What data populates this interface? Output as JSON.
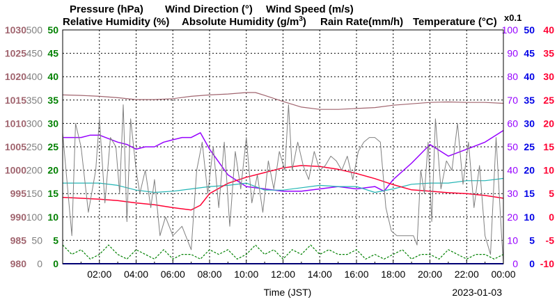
{
  "chart_data": {
    "type": "line",
    "legend": {
      "pressure": "Pressure (hPa)",
      "wind_direction": "Wind Direction (°)",
      "wind_speed": "Wind Speed (m/s)",
      "relative_humidity": "Relative Humidity (%)",
      "absolute_humidity": "Absolute Humidity (g/m",
      "absolute_humidity_sup": "3",
      "absolute_humidity_close": ")",
      "rain_rate": "Rain Rate(mm/h)",
      "temperature": "Temperature (°C)",
      "scale_note": "x0.1"
    },
    "xlabel": "Time (JST)",
    "date": "2023-01-03",
    "x_ticks": [
      "02:00",
      "04:00",
      "06:00",
      "08:00",
      "10:00",
      "12:00",
      "14:00",
      "16:00",
      "18:00",
      "20:00",
      "22:00",
      "00:00"
    ],
    "x_range_hours": [
      0,
      24
    ],
    "axes": {
      "pressure": {
        "range": [
          980,
          1030
        ],
        "ticks": [
          "980",
          "985",
          "990",
          "995",
          "1000",
          "1005",
          "1010",
          "1015",
          "1020",
          "1025",
          "1030"
        ]
      },
      "wind_direction": {
        "range": [
          0,
          500
        ],
        "ticks": [
          "0",
          "50",
          "100",
          "150",
          "200",
          "250",
          "300",
          "350",
          "400",
          "450",
          "500"
        ]
      },
      "wind_speed": {
        "range": [
          0,
          50
        ],
        "ticks": [
          "0",
          "5",
          "10",
          "15",
          "20",
          "25",
          "30",
          "35",
          "40",
          "45",
          "50"
        ]
      },
      "humidity": {
        "range": [
          0,
          100
        ],
        "ticks": [
          "0",
          "10",
          "20",
          "30",
          "40",
          "50",
          "60",
          "70",
          "80",
          "90",
          "100"
        ]
      },
      "rain_rate": {
        "range": [
          0,
          50
        ],
        "ticks": [
          "0",
          "5",
          "10",
          "15",
          "20",
          "25",
          "30",
          "35",
          "40",
          "45",
          "50"
        ]
      },
      "temperature": {
        "range": [
          -10,
          40
        ],
        "ticks": [
          "-10",
          "-5",
          "0",
          "5",
          "10",
          "15",
          "20",
          "25",
          "30",
          "35",
          "40"
        ]
      }
    },
    "colors": {
      "pressure": "#a0646e",
      "wind_direction": "#808080",
      "wind_speed": "#008000",
      "relative_humidity": "#9600ff",
      "absolute_humidity": "#20b4b4",
      "rain_rate": "#0000e6",
      "temperature": "#ff0032"
    },
    "grid": true,
    "series": [
      {
        "name": "Pressure (hPa)",
        "key": "pressure",
        "axis": "pressure",
        "x": [
          0,
          1,
          2,
          3,
          4,
          5,
          6,
          7,
          8,
          9,
          10,
          10.5,
          11,
          12,
          13,
          14,
          15,
          16,
          17,
          18,
          19,
          20,
          21,
          22,
          23,
          24
        ],
        "values": [
          1016.1,
          1016.0,
          1015.8,
          1015.5,
          1015.1,
          1015.1,
          1015.3,
          1015.8,
          1016.1,
          1016.3,
          1016.6,
          1016.6,
          1016.0,
          1014.7,
          1013.5,
          1013.0,
          1013.0,
          1013.2,
          1013.4,
          1013.9,
          1014.2,
          1014.5,
          1014.6,
          1014.5,
          1014.5,
          1014.3
        ]
      },
      {
        "name": "Relative Humidity (%)",
        "key": "relative_humidity",
        "axis": "humidity",
        "x": [
          0,
          1,
          1.5,
          2,
          3,
          3.5,
          4,
          4.5,
          5,
          5.5,
          6,
          6.5,
          7,
          7.5,
          8,
          9,
          10,
          11,
          12,
          13,
          14,
          15,
          16,
          17,
          17.5,
          18,
          19,
          19.5,
          20,
          21,
          22,
          23,
          24
        ],
        "values": [
          54,
          54,
          55,
          55,
          52,
          51,
          49,
          50,
          50,
          52,
          53,
          54,
          54,
          56,
          49,
          38,
          33,
          32,
          31,
          31,
          32,
          33,
          32,
          33,
          31,
          36,
          43,
          47,
          51,
          46,
          49,
          52,
          57
        ]
      },
      {
        "name": "Absolute Humidity (g/m3)",
        "key": "absolute_humidity",
        "axis": "humidity",
        "x": [
          0,
          1,
          2,
          3,
          4,
          5,
          6,
          7,
          8,
          9,
          10,
          11,
          12,
          13,
          14,
          15,
          16,
          17,
          18,
          19,
          20,
          21,
          22,
          23,
          24
        ],
        "values": [
          34.5,
          34.5,
          34.5,
          33.5,
          31.5,
          30.5,
          31,
          32,
          33,
          33.5,
          34.5,
          31.5,
          31.5,
          32.5,
          33.5,
          33,
          33,
          30.5,
          32,
          34,
          34.5,
          34.5,
          35.5,
          35.5,
          36.5
        ]
      },
      {
        "name": "Rain Rate(mm/h)",
        "key": "rain_rate",
        "axis": "rain_rate",
        "x": [
          0,
          24
        ],
        "values": [
          0,
          0
        ]
      },
      {
        "name": "Temperature (°C)",
        "key": "temperature",
        "axis": "temperature",
        "x": [
          0,
          1,
          2,
          3,
          4,
          5,
          6,
          7,
          7.5,
          8,
          9,
          10,
          11,
          12,
          13,
          14,
          15,
          16,
          17,
          18,
          19,
          20,
          21,
          22,
          23,
          24
        ],
        "values": [
          4.2,
          4.0,
          3.8,
          3.5,
          3.0,
          2.6,
          2.0,
          1.5,
          2.5,
          5.0,
          7.2,
          8.5,
          9.5,
          10.5,
          11.0,
          10.8,
          10.2,
          9.3,
          8.2,
          6.9,
          5.8,
          5.5,
          5.2,
          5.0,
          4.6,
          4.0
        ]
      },
      {
        "name": "Wind Direction (°)",
        "key": "wind_direction",
        "axis": "wind_direction",
        "x": [
          0,
          0.5,
          0.7,
          1,
          1.4,
          1.8,
          2,
          2.3,
          2.6,
          2.9,
          3.1,
          3.3,
          3.5,
          3.7,
          4,
          4.2,
          4.5,
          4.8,
          5,
          5.3,
          5.6,
          6,
          6.5,
          7,
          7.3,
          7.6,
          7.9,
          8.2,
          8.5,
          8.8,
          9.1,
          9.4,
          9.7,
          10,
          10.3,
          10.6,
          10.9,
          11.2,
          11.5,
          11.8,
          12.1,
          12.3,
          12.5,
          12.8,
          13.1,
          13.4,
          13.7,
          14,
          14.3,
          14.6,
          14.9,
          15.2,
          15.5,
          15.8,
          16.1,
          16.4,
          16.7,
          17,
          17.3,
          17.6,
          17.9,
          18.2,
          18.5,
          18.8,
          19.1,
          19.3,
          19.5,
          19.7,
          19.9,
          20.1,
          20.3,
          20.6,
          20.9,
          21.2,
          21.5,
          21.8,
          22.1,
          22.4,
          22.7,
          23,
          23.3,
          23.6,
          23.9,
          24
        ],
        "values": [
          280,
          60,
          300,
          250,
          110,
          200,
          310,
          130,
          270,
          250,
          150,
          340,
          90,
          310,
          200,
          150,
          200,
          120,
          180,
          60,
          100,
          60,
          80,
          30,
          200,
          260,
          150,
          250,
          120,
          260,
          80,
          240,
          160,
          270,
          130,
          190,
          110,
          220,
          160,
          240,
          200,
          340,
          200,
          260,
          210,
          180,
          240,
          200,
          210,
          230,
          220,
          200,
          230,
          180,
          240,
          260,
          270,
          270,
          260,
          120,
          70,
          60,
          60,
          60,
          60,
          40,
          200,
          150,
          260,
          90,
          310,
          160,
          220,
          200,
          300,
          170,
          260,
          120,
          210,
          60,
          20,
          270,
          60,
          0
        ]
      },
      {
        "name": "Wind Speed (m/s)",
        "key": "wind_speed",
        "axis": "wind_speed",
        "x": [
          0,
          0.5,
          1,
          1.5,
          2,
          2.5,
          3,
          3.5,
          4,
          4.5,
          5,
          5.5,
          6,
          6.5,
          7,
          7.5,
          8,
          8.5,
          9,
          9.5,
          10,
          10.5,
          11,
          11.5,
          12,
          12.5,
          13,
          13.5,
          14,
          14.5,
          15,
          15.5,
          16,
          16.5,
          17,
          17.5,
          18,
          18.5,
          19,
          19.5,
          20,
          20.5,
          21,
          21.5,
          22,
          22.5,
          23,
          23.5,
          24
        ],
        "values": [
          4,
          2,
          3,
          1,
          2,
          4,
          2,
          1,
          3,
          2,
          1,
          3,
          1,
          2,
          2,
          1,
          3,
          2,
          3,
          1,
          2,
          4,
          2,
          3,
          1,
          3,
          2,
          4,
          2,
          3,
          2,
          2,
          3,
          1,
          2,
          1,
          2,
          3,
          1,
          2,
          2,
          1,
          3,
          2,
          1,
          2,
          2,
          1,
          2
        ]
      }
    ]
  }
}
